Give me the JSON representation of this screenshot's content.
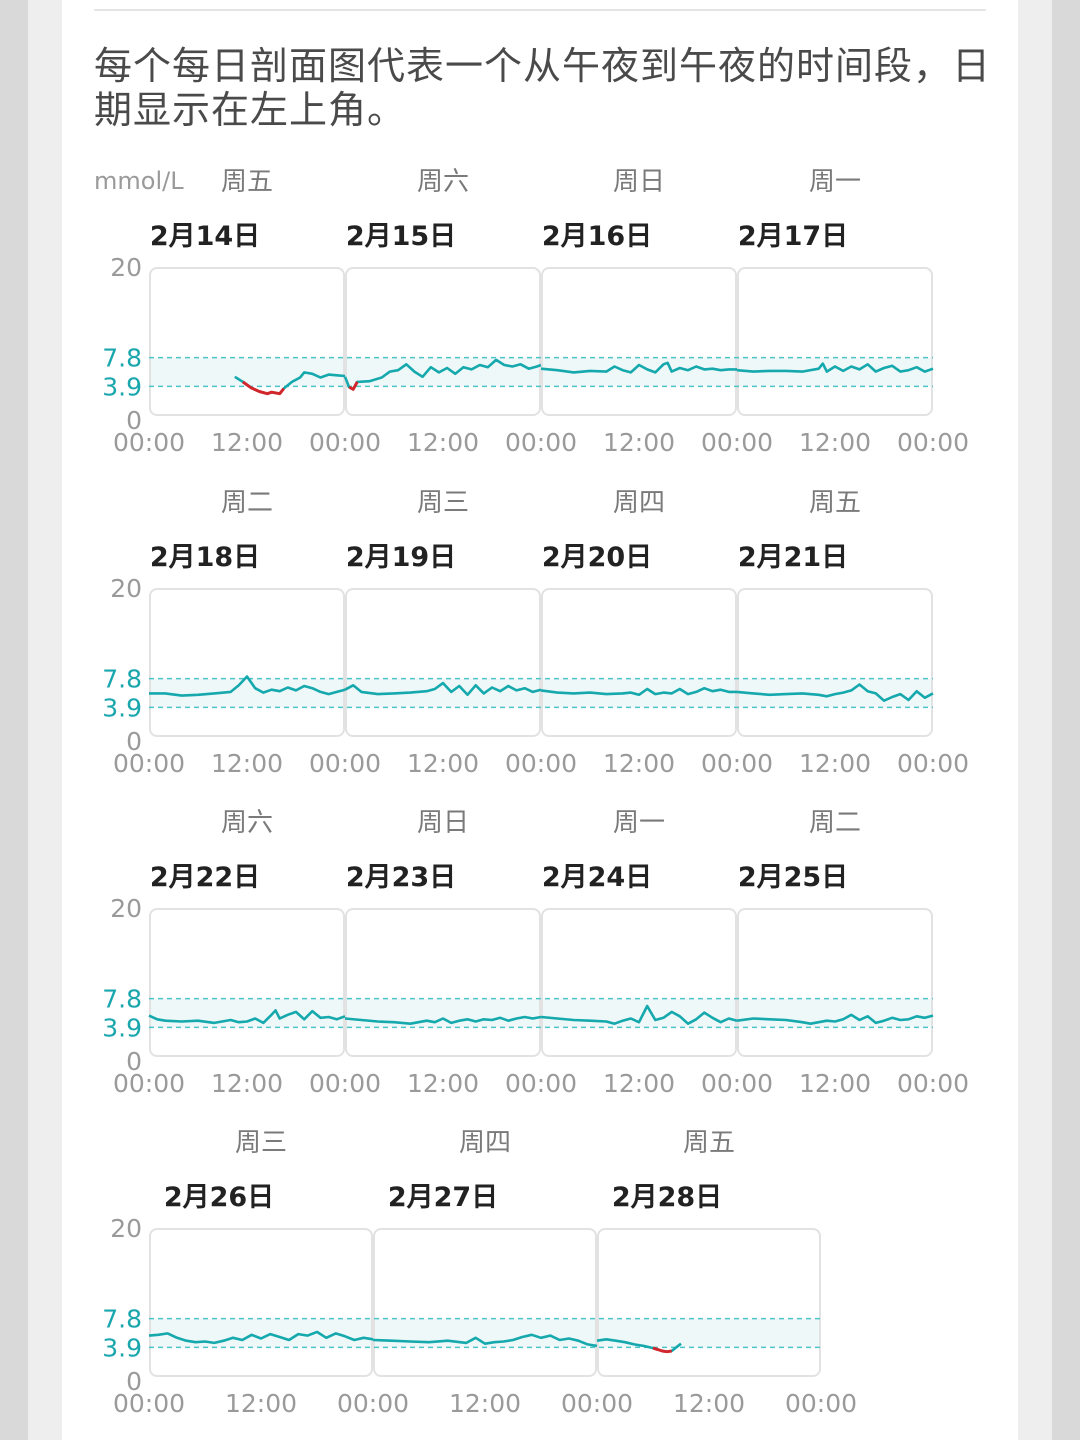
{
  "description": "每个每日剖面图代表一个从午夜到午夜的时间段，日期显示在左上角。",
  "colors": {
    "in_range": "#15a8ad",
    "low": "#d0262c",
    "high": "#f0a800",
    "target_band": "#eef8f8",
    "target_line": "#4cc4c8",
    "box_border": "#e2e2e2"
  },
  "chart_data": {
    "type": "line",
    "unit": "mmol/L",
    "ylim": [
      0,
      20
    ],
    "y_ticks": [
      "20",
      "7.8",
      "3.9",
      "0"
    ],
    "target_range": [
      3.9,
      7.8
    ],
    "x_tick_labels": [
      "00:00",
      "12:00"
    ],
    "x_end_label": "00:00",
    "rows": [
      {
        "days": [
          {
            "weekday": "周五",
            "date": "2月14日",
            "x": [
              10.5,
              11.5,
              12.5,
              13.5,
              14.5,
              15,
              16,
              16.5,
              17.5,
              18.5,
              19,
              20,
              21,
              22,
              23,
              24
            ],
            "y": [
              5.2,
              4.5,
              3.7,
              3.2,
              2.9,
              3.1,
              2.9,
              3.6,
              4.5,
              5.1,
              5.8,
              5.6,
              5.1,
              5.5,
              5.4,
              5.3
            ],
            "low": [
              [
                11.2,
                16.8
              ]
            ],
            "high": []
          },
          {
            "weekday": "周六",
            "date": "2月15日",
            "x": [
              0,
              0.5,
              1,
              1.5,
              3,
              4.5,
              5.5,
              6.5,
              7.5,
              8.5,
              9.5,
              10.5,
              11.5,
              12.5,
              13.5,
              14.5,
              15.5,
              16.5,
              17.5,
              18.5,
              19.5,
              20.5,
              21.5,
              22.5,
              23.5,
              24
            ],
            "y": [
              5.2,
              3.8,
              3.5,
              4.5,
              4.6,
              5.1,
              5.9,
              6.1,
              6.9,
              5.9,
              5.2,
              6.5,
              5.8,
              6.4,
              5.6,
              6.5,
              6.2,
              6.8,
              6.5,
              7.5,
              6.8,
              6.6,
              6.9,
              6.3,
              6.6,
              6.8
            ],
            "low": [
              [
                0.4,
                2.1
              ]
            ],
            "high": []
          },
          {
            "weekday": "周日",
            "date": "2月16日",
            "x": [
              0,
              2,
              4,
              6,
              8,
              9,
              10,
              11,
              12,
              13,
              14,
              15,
              15.5,
              16,
              17,
              18,
              19,
              20,
              21,
              22,
              23,
              24
            ],
            "y": [
              6.3,
              6.1,
              5.8,
              6.0,
              5.9,
              6.6,
              6.1,
              5.8,
              6.8,
              6.2,
              5.8,
              6.9,
              7.1,
              5.9,
              6.4,
              6.1,
              6.6,
              6.2,
              6.3,
              6.1,
              6.2,
              6.2
            ],
            "low": [],
            "high": []
          },
          {
            "weekday": "周一",
            "date": "2月17日",
            "x": [
              0,
              2,
              4,
              6,
              8,
              10,
              10.5,
              11,
              12,
              13,
              14,
              15,
              16,
              17,
              18,
              19,
              20,
              21,
              22,
              23,
              24
            ],
            "y": [
              6.1,
              5.9,
              6.0,
              6.0,
              5.9,
              6.3,
              7.0,
              5.9,
              6.6,
              6.0,
              6.6,
              6.2,
              6.9,
              5.9,
              6.4,
              6.7,
              5.9,
              6.1,
              6.5,
              5.9,
              6.3
            ],
            "low": [],
            "high": []
          }
        ]
      },
      {
        "days": [
          {
            "weekday": "周二",
            "date": "2月18日",
            "x": [
              0,
              2,
              4,
              6,
              8,
              10,
              11,
              12,
              13,
              14,
              15,
              16,
              17,
              18,
              19,
              20,
              21,
              22,
              23,
              24
            ],
            "y": [
              5.8,
              5.8,
              5.5,
              5.6,
              5.8,
              6.0,
              6.9,
              8.1,
              6.5,
              5.9,
              6.3,
              6.1,
              6.6,
              6.2,
              6.8,
              6.5,
              6.0,
              5.7,
              6.0,
              6.3
            ],
            "low": [],
            "high": [
              [
                11.5,
                12.5
              ]
            ]
          },
          {
            "weekday": "周三",
            "date": "2月19日",
            "x": [
              0,
              1,
              2,
              4,
              6,
              8,
              10,
              11,
              12,
              13,
              14,
              15,
              16,
              17,
              18,
              19,
              20,
              21,
              22,
              23,
              24
            ],
            "y": [
              6.3,
              6.9,
              6.0,
              5.7,
              5.8,
              5.9,
              6.1,
              6.4,
              7.2,
              6.0,
              6.8,
              5.6,
              6.9,
              5.8,
              6.6,
              6.1,
              6.8,
              6.2,
              6.5,
              6.0,
              6.3
            ],
            "low": [],
            "high": [
              [
                12,
                12.8
              ]
            ]
          },
          {
            "weekday": "周四",
            "date": "2月20日",
            "x": [
              0,
              2,
              4,
              6,
              8,
              10,
              11,
              12,
              13,
              14,
              15,
              16,
              17,
              18,
              19,
              20,
              21,
              22,
              23,
              24
            ],
            "y": [
              6.2,
              5.9,
              5.8,
              5.9,
              5.7,
              5.8,
              5.9,
              5.6,
              6.4,
              5.7,
              5.9,
              5.8,
              6.4,
              5.7,
              6.0,
              6.5,
              6.1,
              6.3,
              6.0,
              6.0
            ],
            "low": [],
            "high": []
          },
          {
            "weekday": "周五",
            "date": "2月21日",
            "x": [
              0,
              2,
              4,
              6,
              8,
              10,
              11,
              12,
              13,
              14,
              15,
              16,
              17,
              18,
              19,
              20,
              21,
              22,
              23,
              24
            ],
            "y": [
              6.0,
              5.8,
              5.6,
              5.7,
              5.8,
              5.6,
              5.4,
              5.7,
              5.9,
              6.2,
              7.0,
              6.1,
              5.8,
              4.8,
              5.3,
              5.7,
              4.9,
              6.1,
              5.2,
              5.8
            ],
            "low": [],
            "high": []
          }
        ]
      },
      {
        "days": [
          {
            "weekday": "周六",
            "date": "2月22日",
            "x": [
              0,
              1,
              2,
              4,
              6,
              8,
              10,
              11,
              12,
              13,
              14,
              15,
              15.5,
              16,
              17,
              18,
              19,
              20,
              21,
              22,
              23,
              24
            ],
            "y": [
              5.5,
              5.0,
              4.8,
              4.7,
              4.8,
              4.5,
              4.9,
              4.6,
              4.7,
              5.1,
              4.5,
              5.6,
              6.2,
              5.1,
              5.6,
              6.0,
              5.0,
              6.1,
              5.2,
              5.3,
              5.0,
              5.4
            ],
            "low": [],
            "high": []
          },
          {
            "weekday": "周日",
            "date": "2月23日",
            "x": [
              0,
              2,
              4,
              6,
              8,
              10,
              11,
              12,
              13,
              14,
              15,
              16,
              17,
              18,
              19,
              20,
              21,
              22,
              23,
              24
            ],
            "y": [
              5.1,
              4.9,
              4.7,
              4.6,
              4.4,
              4.8,
              4.6,
              5.1,
              4.5,
              4.8,
              5.0,
              4.7,
              5.0,
              4.9,
              5.2,
              4.8,
              5.1,
              5.3,
              5.1,
              5.3
            ],
            "low": [],
            "high": []
          },
          {
            "weekday": "周一",
            "date": "2月24日",
            "x": [
              0,
              2,
              4,
              6,
              8,
              9,
              10,
              11,
              12,
              13,
              14,
              15,
              16,
              17,
              18,
              19,
              20,
              21,
              22,
              23,
              24
            ],
            "y": [
              5.3,
              5.1,
              4.9,
              4.8,
              4.7,
              4.4,
              4.8,
              5.1,
              4.6,
              6.8,
              4.9,
              5.2,
              6.0,
              5.4,
              4.4,
              5.0,
              5.9,
              5.2,
              4.6,
              5.1,
              4.8
            ],
            "low": [],
            "high": []
          },
          {
            "weekday": "周二",
            "date": "2月25日",
            "x": [
              0,
              2,
              4,
              6,
              8,
              9,
              10,
              11,
              12,
              13,
              14,
              15,
              16,
              17,
              18,
              19,
              20,
              21,
              22,
              23,
              24
            ],
            "y": [
              4.8,
              5.1,
              5.0,
              4.9,
              4.6,
              4.4,
              4.6,
              4.8,
              4.7,
              5.0,
              5.6,
              4.9,
              5.4,
              4.5,
              4.8,
              5.2,
              4.9,
              5.0,
              5.4,
              5.2,
              5.5
            ],
            "low": [],
            "high": []
          }
        ]
      },
      {
        "days": [
          {
            "weekday": "周三",
            "date": "2月26日",
            "x": [
              0,
              1,
              2,
              3,
              4,
              5,
              6,
              7,
              8,
              9,
              10,
              11,
              12,
              13,
              14,
              15,
              16,
              17,
              18,
              19,
              20,
              21,
              22,
              23,
              24
            ],
            "y": [
              5.5,
              5.6,
              5.8,
              5.2,
              4.8,
              4.6,
              4.7,
              4.5,
              4.8,
              5.2,
              4.9,
              5.6,
              5.1,
              5.7,
              5.3,
              4.9,
              5.7,
              5.5,
              6.0,
              5.2,
              5.8,
              5.4,
              4.9,
              5.2,
              5.0
            ],
            "low": [],
            "high": []
          },
          {
            "weekday": "周四",
            "date": "2月27日",
            "x": [
              0,
              2,
              4,
              6,
              8,
              10,
              11,
              12,
              13,
              14,
              15,
              16,
              17,
              18,
              19,
              20,
              21,
              22,
              23,
              24
            ],
            "y": [
              4.9,
              4.8,
              4.7,
              4.6,
              4.8,
              4.5,
              5.2,
              4.4,
              4.6,
              4.7,
              4.9,
              5.3,
              5.6,
              5.2,
              5.5,
              4.9,
              5.1,
              4.8,
              4.3,
              4.1
            ],
            "low": [
              [
                22.8,
                23.2
              ]
            ],
            "high": []
          },
          {
            "weekday": "周五",
            "date": "2月28日",
            "x": [
              0,
              1,
              2,
              3,
              4,
              5,
              6,
              6.5,
              7,
              7.5,
              8,
              8.5,
              9
            ],
            "y": [
              4.8,
              5.0,
              4.8,
              4.6,
              4.3,
              4.1,
              3.8,
              3.6,
              3.4,
              3.3,
              3.4,
              3.9,
              4.4
            ],
            "low": [
              [
                5.2,
                8.4
              ]
            ],
            "high": []
          }
        ]
      }
    ]
  }
}
